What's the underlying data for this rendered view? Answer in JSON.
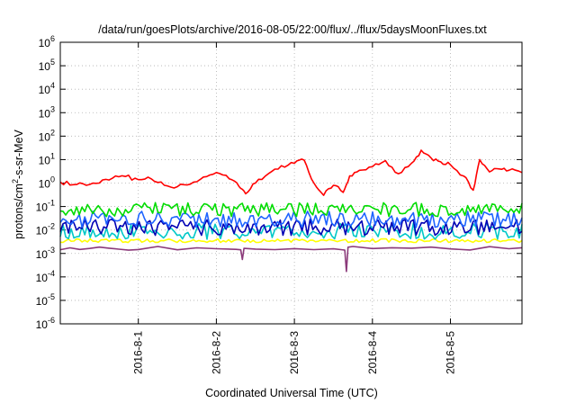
{
  "chart_data": {
    "type": "line",
    "title": "/data/run/goesPlots/archive/2016-08-05/22:00/flux/../flux/5daysMoonFluxes.txt",
    "xlabel": "Coordinated Universal Time (UTC)",
    "ylabel": {
      "prefix": "protons/cm",
      "superscript": "2",
      "suffix": "-s-sr-MeV"
    },
    "y_scale": "log",
    "ylim": [
      1e-06,
      1000000.0
    ],
    "y_ticks": [
      {
        "value": 1e-06,
        "base": "10",
        "exp": "-6"
      },
      {
        "value": 1e-05,
        "base": "10",
        "exp": "-5"
      },
      {
        "value": 0.0001,
        "base": "10",
        "exp": "-4"
      },
      {
        "value": 0.001,
        "base": "10",
        "exp": "-3"
      },
      {
        "value": 0.01,
        "base": "10",
        "exp": "-2"
      },
      {
        "value": 0.1,
        "base": "10",
        "exp": "-1"
      },
      {
        "value": 1,
        "base": "10",
        "exp": "0"
      },
      {
        "value": 10,
        "base": "10",
        "exp": "1"
      },
      {
        "value": 100,
        "base": "10",
        "exp": "2"
      },
      {
        "value": 1000,
        "base": "10",
        "exp": "3"
      },
      {
        "value": 10000,
        "base": "10",
        "exp": "4"
      },
      {
        "value": 100000,
        "base": "10",
        "exp": "5"
      },
      {
        "value": 1000000,
        "base": "10",
        "exp": "6"
      }
    ],
    "xlim": [
      "2016-07-31T00:00",
      "2016-08-05T22:00"
    ],
    "x_ticks": [
      {
        "value": "2016-08-01T00:00",
        "label": "2016-8-1"
      },
      {
        "value": "2016-08-02T00:00",
        "label": "2016-8-2"
      },
      {
        "value": "2016-08-03T00:00",
        "label": "2016-8-3"
      },
      {
        "value": "2016-08-04T00:00",
        "label": "2016-8-4"
      },
      {
        "value": "2016-08-05T00:00",
        "label": "2016-8-5"
      }
    ],
    "grid": true,
    "series": [
      {
        "color": "#8b3a7a",
        "baseline": 0.0016,
        "values": [
          [
            "2016-07-31T00:00",
            0.0017
          ],
          [
            "2016-07-31T03:00",
            0.0018
          ],
          [
            "2016-07-31T06:00",
            0.0016
          ],
          [
            "2016-07-31T09:00",
            0.0017
          ],
          [
            "2016-07-31T12:00",
            0.0018
          ],
          [
            "2016-07-31T15:00",
            0.0016
          ],
          [
            "2016-07-31T18:00",
            0.0017
          ],
          [
            "2016-07-31T21:00",
            0.0016
          ],
          [
            "2016-08-01T00:00",
            0.0017
          ],
          [
            "2016-08-01T06:00",
            0.0018
          ],
          [
            "2016-08-01T12:00",
            0.0016
          ],
          [
            "2016-08-01T18:00",
            0.0017
          ],
          [
            "2016-08-02T00:00",
            0.0016
          ],
          [
            "2016-08-02T06:00",
            0.0017
          ],
          [
            "2016-08-02T07:30",
            0.0016
          ],
          [
            "2016-08-02T08:00",
            0.00055
          ],
          [
            "2016-08-02T08:30",
            0.0016
          ],
          [
            "2016-08-02T12:00",
            0.0018
          ],
          [
            "2016-08-02T18:00",
            0.0017
          ],
          [
            "2016-08-03T00:00",
            0.0018
          ],
          [
            "2016-08-03T06:00",
            0.0016
          ],
          [
            "2016-08-03T12:00",
            0.0017
          ],
          [
            "2016-08-03T15:30",
            0.0016
          ],
          [
            "2016-08-03T16:00",
            0.00017
          ],
          [
            "2016-08-03T16:30",
            0.0017
          ],
          [
            "2016-08-03T18:00",
            0.0018
          ],
          [
            "2016-08-04T00:00",
            0.0016
          ],
          [
            "2016-08-04T06:00",
            0.0017
          ],
          [
            "2016-08-04T12:00",
            0.0018
          ],
          [
            "2016-08-04T18:00",
            0.0016
          ],
          [
            "2016-08-05T00:00",
            0.0017
          ],
          [
            "2016-08-05T06:00",
            0.0016
          ],
          [
            "2016-08-05T12:00",
            0.0018
          ],
          [
            "2016-08-05T18:00",
            0.0017
          ],
          [
            "2016-08-05T22:00",
            0.0016
          ]
        ]
      },
      {
        "color": "#ffff00",
        "baseline": 0.0035,
        "values": [
          [
            "2016-07-31T00:00",
            0.0035
          ],
          [
            "2016-08-01T00:00",
            0.0036
          ],
          [
            "2016-08-02T00:00",
            0.0034
          ],
          [
            "2016-08-03T00:00",
            0.0036
          ],
          [
            "2016-08-04T00:00",
            0.0035
          ],
          [
            "2016-08-05T00:00",
            0.0036
          ],
          [
            "2016-08-05T22:00",
            0.0035
          ]
        ]
      },
      {
        "color": "#00c8c8",
        "baseline": 0.009,
        "values": [
          [
            "2016-07-31T00:00",
            0.009
          ],
          [
            "2016-08-01T00:00",
            0.01
          ],
          [
            "2016-08-02T00:00",
            0.009
          ],
          [
            "2016-08-03T00:00",
            0.01
          ],
          [
            "2016-08-04T00:00",
            0.009
          ],
          [
            "2016-08-05T00:00",
            0.01
          ],
          [
            "2016-08-05T22:00",
            0.009
          ]
        ]
      },
      {
        "color": "#0000b4",
        "baseline": 0.013,
        "values": [
          [
            "2016-07-31T00:00",
            0.013
          ],
          [
            "2016-08-01T00:00",
            0.014
          ],
          [
            "2016-08-02T00:00",
            0.012
          ],
          [
            "2016-08-03T00:00",
            0.014
          ],
          [
            "2016-08-04T00:00",
            0.013
          ],
          [
            "2016-08-05T00:00",
            0.014
          ],
          [
            "2016-08-05T22:00",
            0.013
          ]
        ]
      },
      {
        "color": "#1e64ff",
        "baseline": 0.028,
        "values": [
          [
            "2016-07-31T00:00",
            0.028
          ],
          [
            "2016-08-01T00:00",
            0.03
          ],
          [
            "2016-08-02T00:00",
            0.027
          ],
          [
            "2016-08-03T00:00",
            0.03
          ],
          [
            "2016-08-04T00:00",
            0.028
          ],
          [
            "2016-08-05T00:00",
            0.03
          ],
          [
            "2016-08-05T22:00",
            0.028
          ]
        ]
      },
      {
        "color": "#00dc00",
        "baseline": 0.075,
        "values": [
          [
            "2016-07-31T00:00",
            0.075
          ],
          [
            "2016-08-01T00:00",
            0.08
          ],
          [
            "2016-08-02T00:00",
            0.07
          ],
          [
            "2016-08-03T00:00",
            0.08
          ],
          [
            "2016-08-04T00:00",
            0.075
          ],
          [
            "2016-08-05T00:00",
            0.08
          ],
          [
            "2016-08-05T22:00",
            0.075
          ]
        ]
      },
      {
        "color": "#ff0000",
        "values": [
          [
            "2016-07-31T00:00",
            1.1
          ],
          [
            "2016-07-31T04:00",
            0.85
          ],
          [
            "2016-07-31T08:00",
            0.8
          ],
          [
            "2016-07-31T12:00",
            1.0
          ],
          [
            "2016-07-31T16:00",
            1.6
          ],
          [
            "2016-07-31T20:00",
            1.9
          ],
          [
            "2016-08-01T00:00",
            1.4
          ],
          [
            "2016-08-01T04:00",
            1.5
          ],
          [
            "2016-08-01T08:00",
            0.8
          ],
          [
            "2016-08-01T12:00",
            0.7
          ],
          [
            "2016-08-01T16:00",
            0.9
          ],
          [
            "2016-08-01T20:00",
            1.8
          ],
          [
            "2016-08-02T00:00",
            2.8
          ],
          [
            "2016-08-02T04:00",
            1.5
          ],
          [
            "2016-08-02T07:00",
            0.7
          ],
          [
            "2016-08-02T09:00",
            0.35
          ],
          [
            "2016-08-02T12:00",
            1.0
          ],
          [
            "2016-08-02T16:00",
            2.5
          ],
          [
            "2016-08-02T20:00",
            5.5
          ],
          [
            "2016-08-03T00:00",
            7.0
          ],
          [
            "2016-08-03T03:00",
            9.5
          ],
          [
            "2016-08-03T06:00",
            1.0
          ],
          [
            "2016-08-03T09:00",
            0.3
          ],
          [
            "2016-08-03T12:00",
            0.8
          ],
          [
            "2016-08-03T15:00",
            0.4
          ],
          [
            "2016-08-03T17:00",
            2.0
          ],
          [
            "2016-08-03T20:00",
            3.5
          ],
          [
            "2016-08-04T00:00",
            5.0
          ],
          [
            "2016-08-04T04:00",
            9.0
          ],
          [
            "2016-08-04T08:00",
            2.5
          ],
          [
            "2016-08-04T12:00",
            7.0
          ],
          [
            "2016-08-04T15:00",
            25.0
          ],
          [
            "2016-08-04T18:00",
            12.0
          ],
          [
            "2016-08-04T21:00",
            8.0
          ],
          [
            "2016-08-05T00:00",
            6.0
          ],
          [
            "2016-08-05T04:00",
            2.0
          ],
          [
            "2016-08-05T07:00",
            0.5
          ],
          [
            "2016-08-05T09:00",
            10.0
          ],
          [
            "2016-08-05T12:00",
            3.0
          ],
          [
            "2016-08-05T15:00",
            4.0
          ],
          [
            "2016-08-05T18:00",
            3.5
          ],
          [
            "2016-08-05T22:00",
            2.8
          ]
        ]
      }
    ]
  }
}
